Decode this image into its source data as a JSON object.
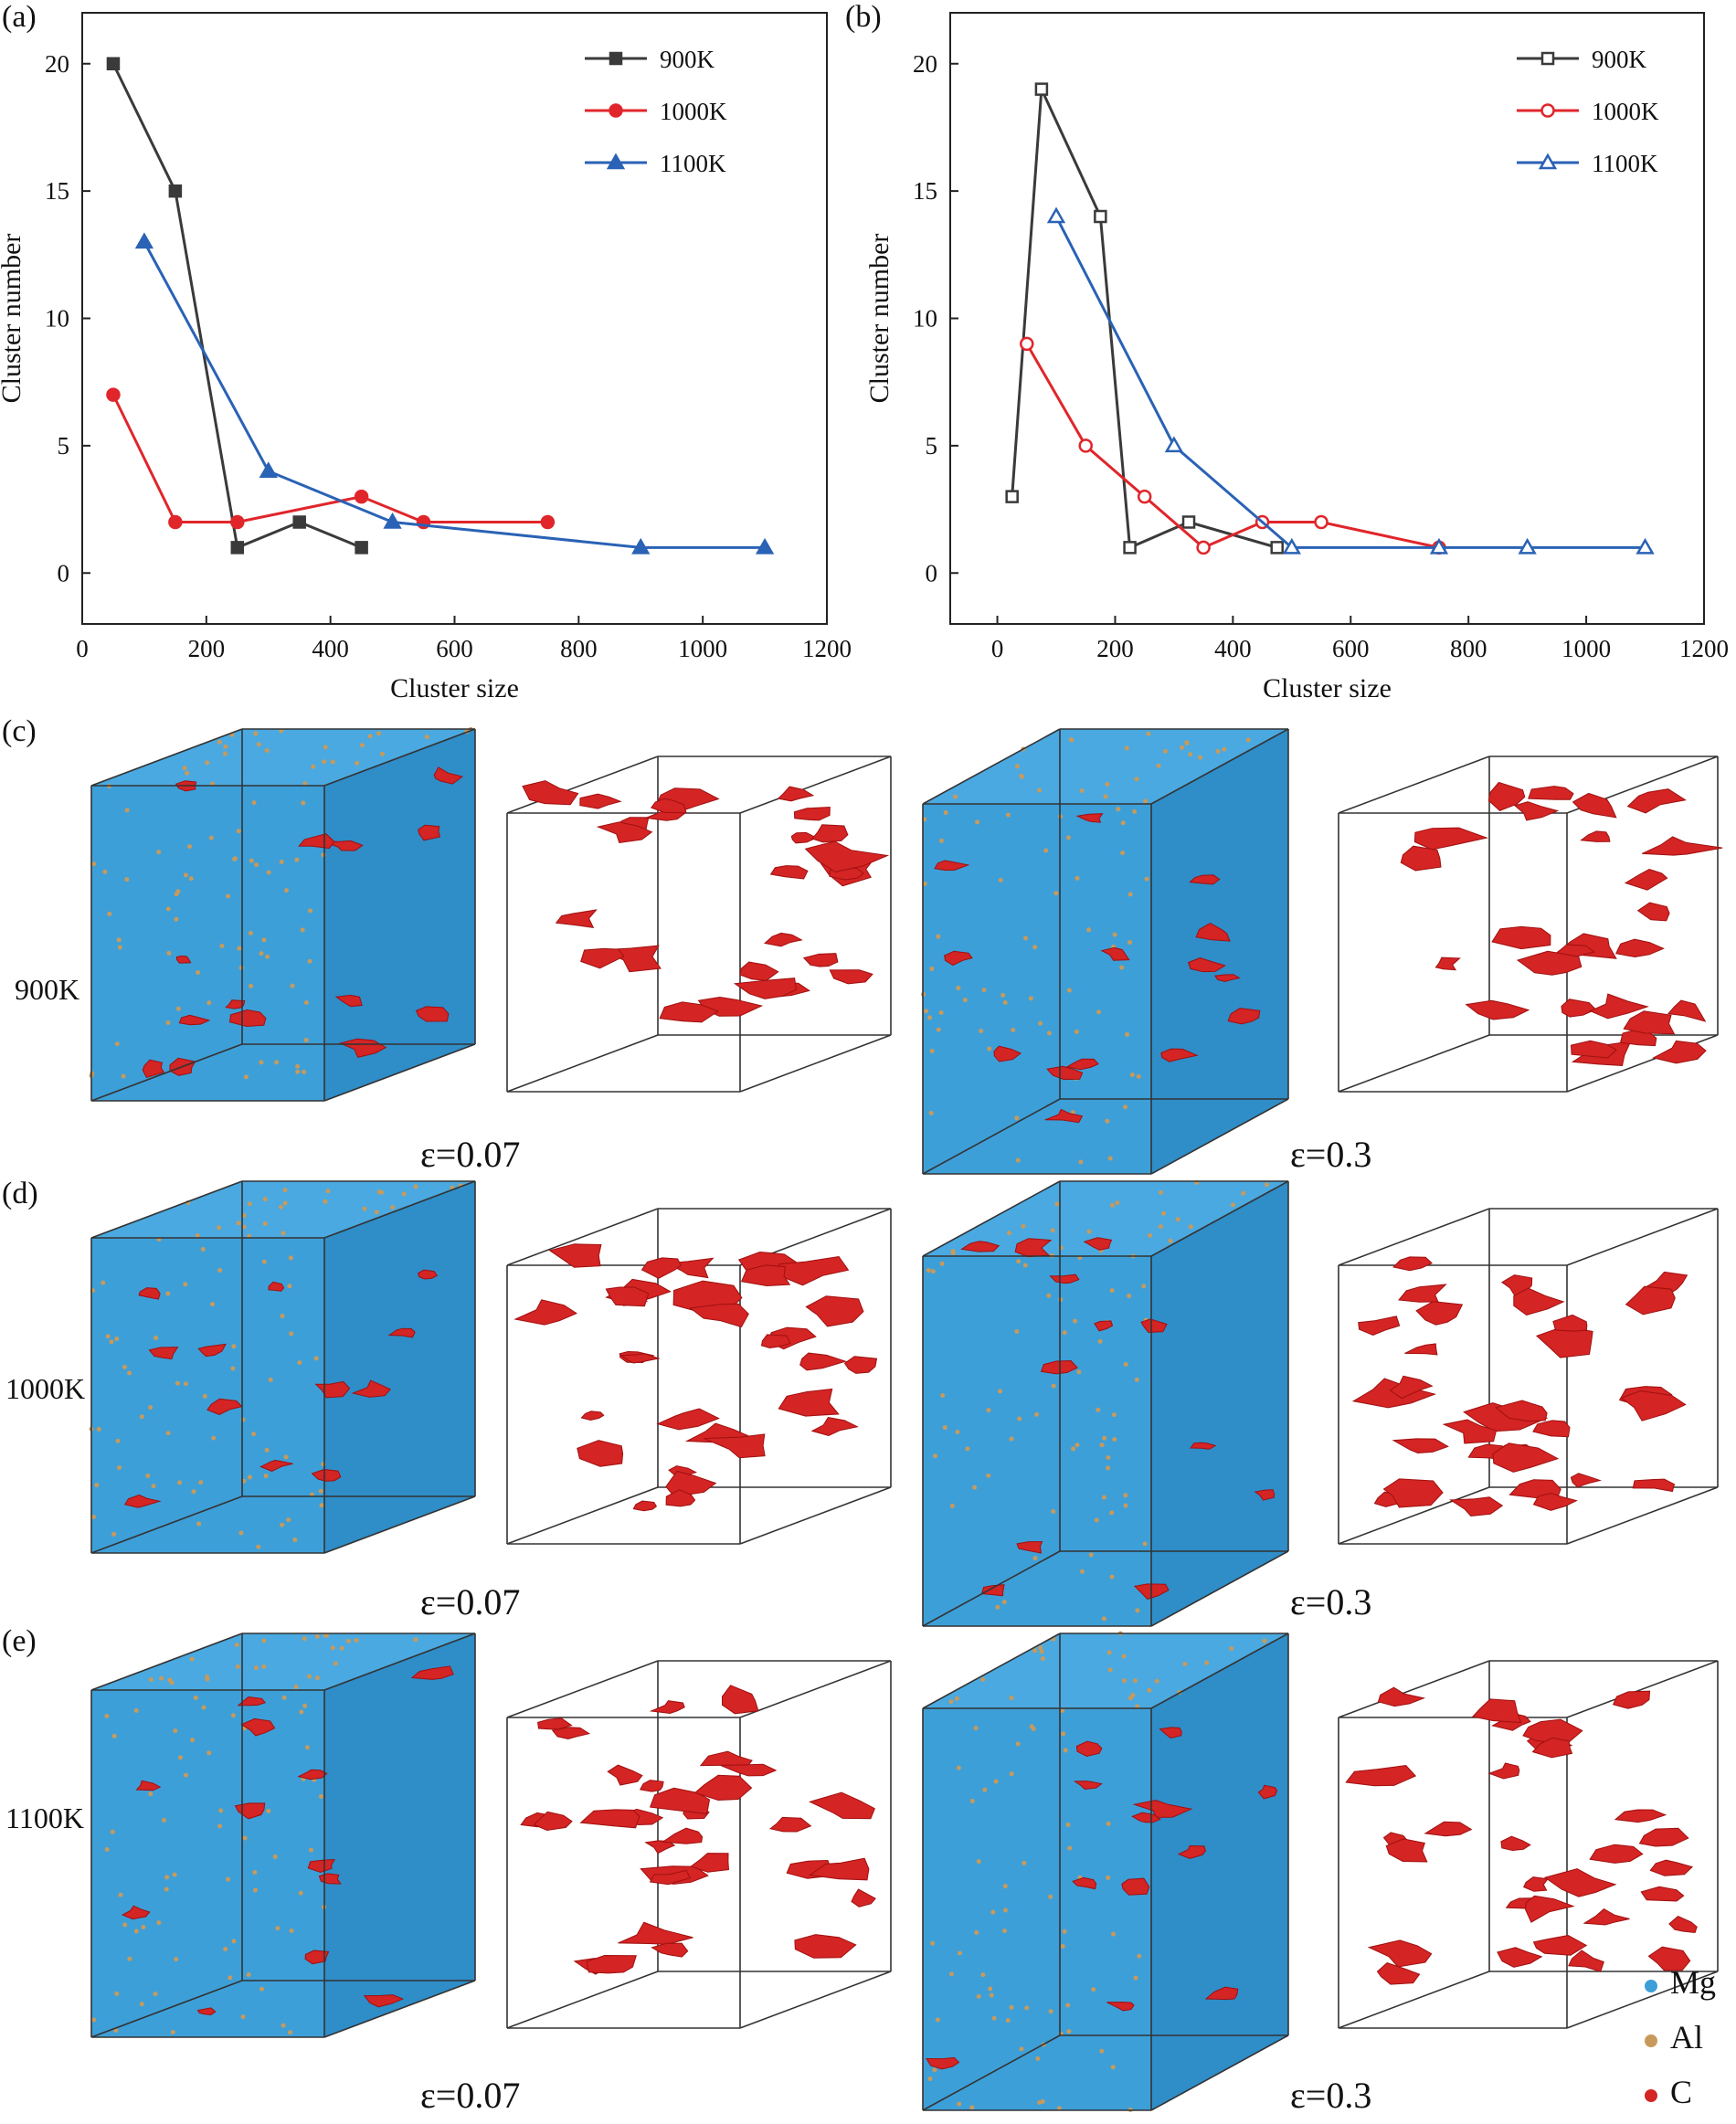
{
  "colors": {
    "s900": "#3a3a3a",
    "s1000": "#e0262b",
    "s1100": "#2a62b5",
    "mg": "#3d9fd8",
    "al": "#c79a5c",
    "c": "#d42424",
    "temp_label": "#d0306f"
  },
  "panels": {
    "a": "(a)",
    "b": "(b)",
    "c": "(c)",
    "d": "(d)",
    "e": "(e)"
  },
  "rows": [
    {
      "temp": "900K",
      "strain_left": "ε=0.07",
      "strain_right": "ε=0.3"
    },
    {
      "temp": "1000K",
      "strain_left": "ε=0.07",
      "strain_right": "ε=0.3"
    },
    {
      "temp": "1100K",
      "strain_left": "ε=0.07",
      "strain_right": "ε=0.3"
    }
  ],
  "legend_atoms": [
    "Mg",
    "Al",
    "C"
  ],
  "chart_data": [
    {
      "type": "line",
      "panel": "(a)",
      "xlabel": "Cluster size",
      "ylabel": "Cluster number",
      "xlim": [
        0,
        1200
      ],
      "ylim": [
        -2,
        22
      ],
      "xticks": [
        0,
        200,
        400,
        600,
        800,
        1000,
        1200
      ],
      "yticks": [
        0,
        5,
        10,
        15,
        20
      ],
      "legend_position": "top-right",
      "series": [
        {
          "name": "900K",
          "marker": "square",
          "filled": true,
          "color": "#3a3a3a",
          "points": [
            [
              50,
              20
            ],
            [
              150,
              15
            ],
            [
              250,
              1
            ],
            [
              350,
              2
            ],
            [
              450,
              1
            ]
          ]
        },
        {
          "name": "1000K",
          "marker": "circle",
          "filled": true,
          "color": "#e0262b",
          "points": [
            [
              50,
              7
            ],
            [
              150,
              2
            ],
            [
              250,
              2
            ],
            [
              450,
              3
            ],
            [
              550,
              2
            ],
            [
              750,
              2
            ]
          ]
        },
        {
          "name": "1100K",
          "marker": "triangle",
          "filled": true,
          "color": "#2a62b5",
          "points": [
            [
              100,
              13
            ],
            [
              300,
              4
            ],
            [
              500,
              2
            ],
            [
              900,
              1
            ],
            [
              1100,
              1
            ]
          ]
        }
      ]
    },
    {
      "type": "line",
      "panel": "(b)",
      "xlabel": "Cluster size",
      "ylabel": "Cluster number",
      "xlim": [
        -80,
        1200
      ],
      "ylim": [
        -2,
        22
      ],
      "xticks": [
        0,
        200,
        400,
        600,
        800,
        1000,
        1200
      ],
      "yticks": [
        0,
        5,
        10,
        15,
        20
      ],
      "legend_position": "top-right",
      "series": [
        {
          "name": "900K",
          "marker": "square",
          "filled": false,
          "color": "#3a3a3a",
          "points": [
            [
              25,
              3
            ],
            [
              75,
              19
            ],
            [
              175,
              14
            ],
            [
              225,
              1
            ],
            [
              325,
              2
            ],
            [
              475,
              1
            ]
          ]
        },
        {
          "name": "1000K",
          "marker": "circle",
          "filled": false,
          "color": "#e0262b",
          "points": [
            [
              50,
              9
            ],
            [
              150,
              5
            ],
            [
              250,
              3
            ],
            [
              350,
              1
            ],
            [
              450,
              2
            ],
            [
              550,
              2
            ],
            [
              750,
              1
            ]
          ]
        },
        {
          "name": "1100K",
          "marker": "triangle",
          "filled": false,
          "color": "#2a62b5",
          "points": [
            [
              100,
              14
            ],
            [
              300,
              5
            ],
            [
              500,
              1
            ],
            [
              750,
              1
            ],
            [
              900,
              1
            ],
            [
              1100,
              1
            ]
          ]
        }
      ]
    }
  ]
}
